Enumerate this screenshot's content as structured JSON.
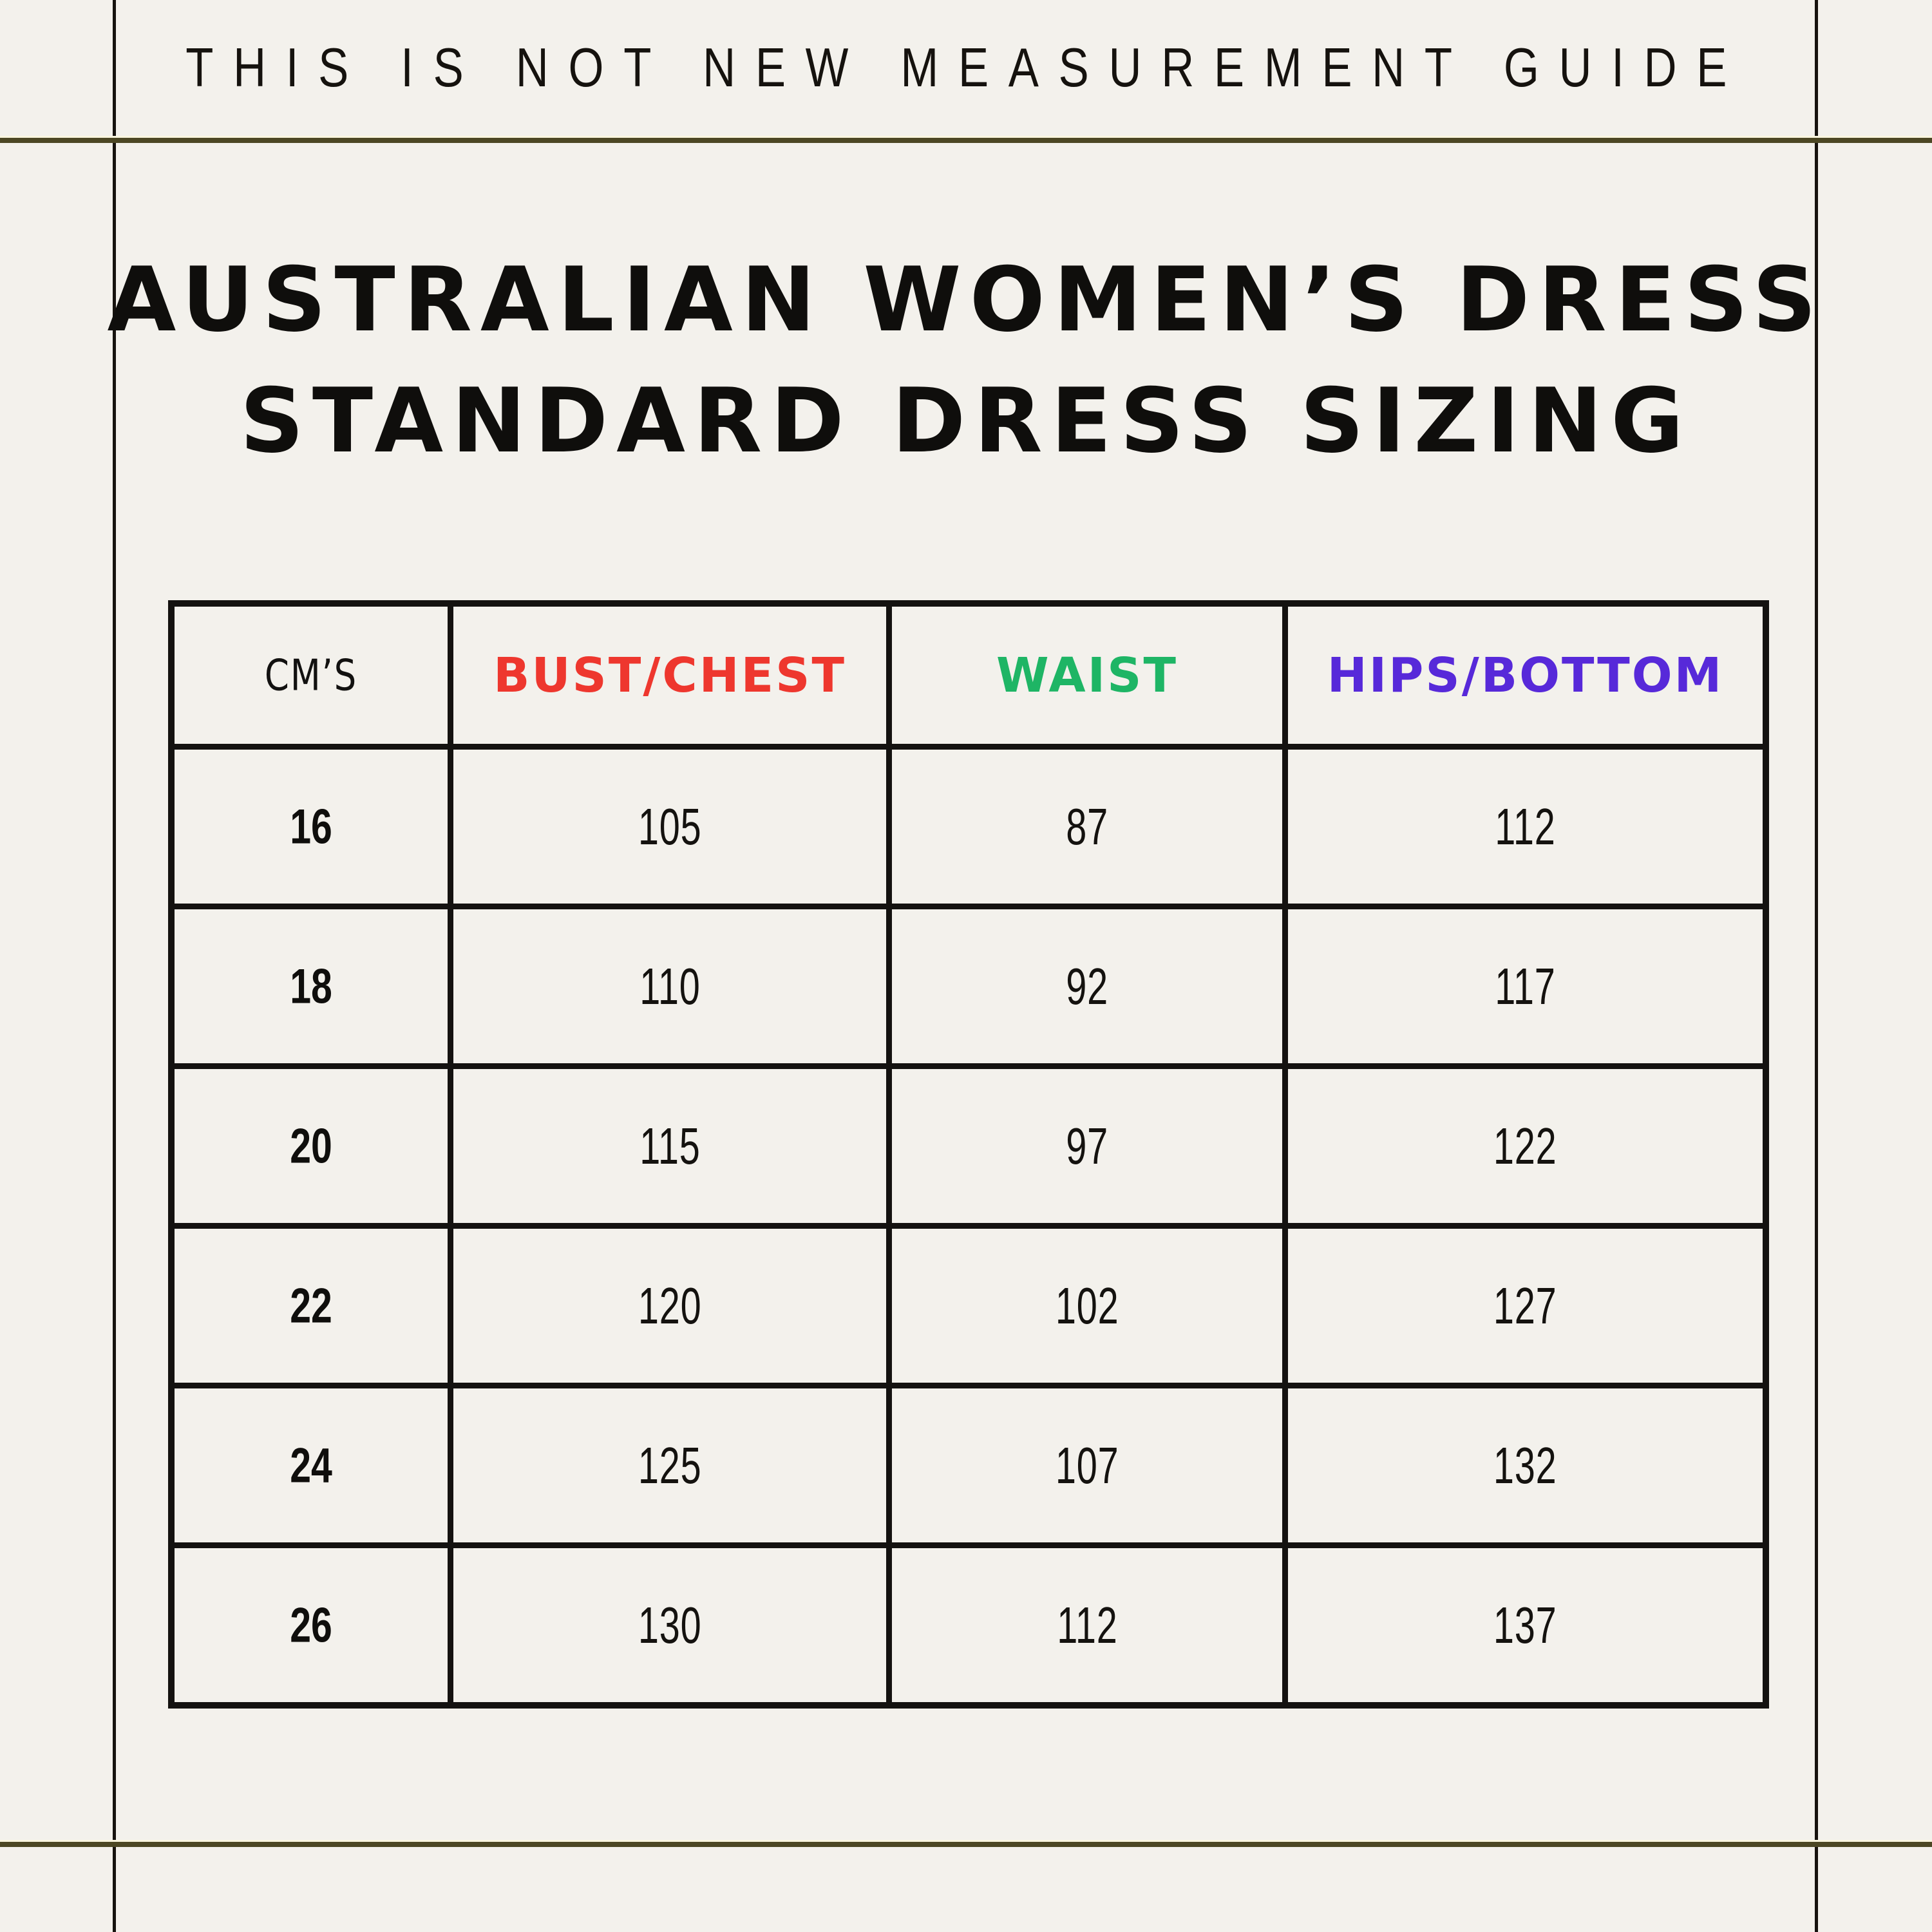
{
  "banner": "THIS IS NOT NEW MEASUREMENT GUIDE",
  "title_line1": "AUSTRALIAN WOMEN’S DRESS",
  "title_line2": "STANDARD DRESS SIZING",
  "table": {
    "col_cms": "CM’S",
    "col_bust": "BUST/CHEST",
    "col_waist": "WAIST",
    "col_hips": "HIPS/BOTTOM",
    "rows": [
      [
        "16",
        "105",
        "87",
        "112"
      ],
      [
        "18",
        "110",
        "92",
        "117"
      ],
      [
        "20",
        "115",
        "97",
        "122"
      ],
      [
        "22",
        "120",
        "102",
        "127"
      ],
      [
        "24",
        "125",
        "107",
        "132"
      ],
      [
        "26",
        "130",
        "112",
        "137"
      ]
    ]
  },
  "colors": {
    "background": "#f3f1ec",
    "text_black": "#14120f",
    "frame_line": "#17130f",
    "divider_olive": "#4c4724",
    "divider_highlight": "#faf6df",
    "bust_red": "#ee372e",
    "waist_green": "#1eb565",
    "hips_purple": "#5729d9",
    "table_border": "#141210"
  },
  "chart_data": {
    "type": "table",
    "title": "AUSTRALIAN WOMEN’S DRESS STANDARD DRESS SIZING",
    "note": "THIS IS NOT NEW MEASUREMENT GUIDE",
    "columns": [
      "CM’S",
      "BUST/CHEST",
      "WAIST",
      "HIPS/BOTTOM"
    ],
    "rows": [
      [
        16,
        105,
        87,
        112
      ],
      [
        18,
        110,
        92,
        117
      ],
      [
        20,
        115,
        97,
        122
      ],
      [
        22,
        120,
        102,
        127
      ],
      [
        24,
        125,
        107,
        132
      ],
      [
        26,
        130,
        112,
        137
      ]
    ],
    "units": "centimetres"
  }
}
